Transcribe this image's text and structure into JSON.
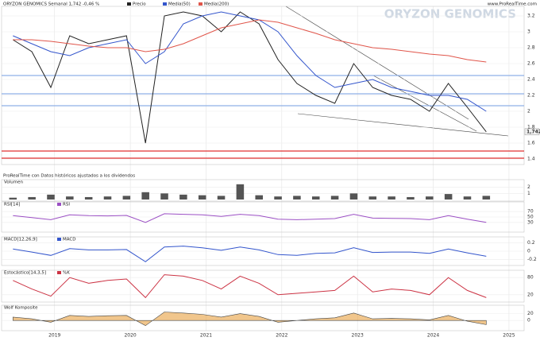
{
  "chart_data": [
    {
      "type": "line",
      "title": "ORYZON GENOMICS",
      "subtitle": "ORYZON GENOMICS Semanal 1,742 -0,46 %",
      "source": "www.ProRealTime.com",
      "note": "ProRealTime con Datos históricos ajustados a los dividendos",
      "x": [
        2018.45,
        2018.7,
        2018.95,
        2019.2,
        2019.45,
        2019.7,
        2019.95,
        2020.2,
        2020.45,
        2020.7,
        2020.95,
        2021.2,
        2021.45,
        2021.7,
        2021.95,
        2022.2,
        2022.45,
        2022.7,
        2022.95,
        2023.2,
        2023.45,
        2023.7,
        2023.95,
        2024.2,
        2024.45,
        2024.7
      ],
      "xlim": [
        2018.3,
        2025.2
      ],
      "xticks": [
        2019,
        2020,
        2021,
        2022,
        2023,
        2024,
        2025
      ],
      "ylim": [
        1.35,
        3.3
      ],
      "yticks": [
        1.4,
        1.6,
        1.8,
        2,
        2.2,
        2.4,
        2.6,
        2.8,
        3,
        3.2
      ],
      "series": [
        {
          "name": "Precio",
          "color": "#222222",
          "values": [
            2.9,
            2.75,
            2.3,
            2.95,
            2.85,
            2.9,
            2.95,
            1.6,
            3.2,
            3.25,
            3.2,
            3.0,
            3.25,
            3.1,
            2.65,
            2.35,
            2.2,
            2.1,
            2.6,
            2.3,
            2.2,
            2.15,
            2.0,
            2.35,
            2.05,
            1.742
          ]
        },
        {
          "name": "Media(50)",
          "color": "#3355cc",
          "values": [
            2.95,
            2.85,
            2.75,
            2.7,
            2.8,
            2.85,
            2.9,
            2.6,
            2.75,
            3.1,
            3.2,
            3.25,
            3.2,
            3.15,
            3.0,
            2.7,
            2.45,
            2.3,
            2.35,
            2.4,
            2.3,
            2.25,
            2.2,
            2.2,
            2.15,
            2.0
          ]
        },
        {
          "name": "Media(200)",
          "color": "#e0554a",
          "values": [
            2.9,
            2.9,
            2.88,
            2.85,
            2.82,
            2.8,
            2.8,
            2.75,
            2.78,
            2.85,
            2.95,
            3.05,
            3.1,
            3.15,
            3.12,
            3.05,
            2.98,
            2.9,
            2.85,
            2.8,
            2.78,
            2.75,
            2.72,
            2.7,
            2.65,
            2.62
          ]
        }
      ],
      "levels": [
        {
          "value": 2.45,
          "color": "#8fb0e6"
        },
        {
          "value": 2.22,
          "color": "#8fb0e6"
        },
        {
          "value": 2.07,
          "color": "#8fb0e6"
        },
        {
          "value": 1.5,
          "color": "#e03030"
        },
        {
          "value": 1.41,
          "color": "#e03030"
        }
      ],
      "last_price": {
        "value": 1.742,
        "label": "1,742"
      }
    },
    {
      "type": "bar",
      "title": "Volumen",
      "color": "#555555",
      "ylim": [
        0,
        3
      ],
      "yticks": [
        1,
        2
      ],
      "values": [
        0.3,
        0.4,
        0.8,
        0.5,
        0.4,
        0.5,
        0.6,
        1.2,
        1.0,
        0.8,
        0.7,
        0.6,
        2.5,
        0.7,
        0.5,
        0.6,
        0.5,
        0.6,
        1.0,
        0.5,
        0.5,
        0.4,
        0.5,
        0.9,
        0.5,
        0.6
      ]
    },
    {
      "type": "line",
      "title": "RSI[14]",
      "ylim": [
        0,
        100
      ],
      "yticks": [
        30,
        50,
        70
      ],
      "series": [
        {
          "name": "RSI",
          "color": "#9b4fc4",
          "values": [
            55,
            48,
            40,
            58,
            55,
            54,
            56,
            30,
            62,
            60,
            58,
            52,
            60,
            55,
            42,
            40,
            42,
            44,
            60,
            46,
            45,
            44,
            40,
            55,
            42,
            30
          ]
        }
      ]
    },
    {
      "type": "line",
      "title": "MACD[12,26,9]",
      "ylim": [
        -0.3,
        0.3
      ],
      "yticks": [
        -0.2,
        0,
        0.2
      ],
      "series": [
        {
          "name": "MACD",
          "color": "#3355cc",
          "values": [
            0.05,
            -0.02,
            -0.1,
            0.06,
            0.03,
            0.03,
            0.04,
            -0.25,
            0.1,
            0.12,
            0.08,
            0.02,
            0.1,
            0.03,
            -0.08,
            -0.1,
            -0.05,
            -0.04,
            0.08,
            -0.03,
            -0.02,
            -0.02,
            -0.05,
            0.05,
            -0.04,
            -0.12
          ]
        }
      ]
    },
    {
      "type": "line",
      "title": "Estocástico[14,3,5]",
      "ylim": [
        0,
        100
      ],
      "yticks": [
        20,
        80
      ],
      "series": [
        {
          "name": "%K",
          "color": "#cc3344",
          "values": [
            70,
            40,
            15,
            80,
            60,
            70,
            75,
            10,
            90,
            85,
            70,
            40,
            85,
            60,
            20,
            25,
            30,
            35,
            85,
            30,
            40,
            35,
            20,
            80,
            35,
            10
          ]
        }
      ]
    },
    {
      "type": "area",
      "title": "Wolf Komposite",
      "color": "#e8a040",
      "ylim": [
        -25,
        40
      ],
      "yticks": [
        0,
        20
      ],
      "values": [
        10,
        5,
        -5,
        15,
        12,
        14,
        15,
        -15,
        25,
        22,
        18,
        10,
        20,
        12,
        -5,
        0,
        5,
        8,
        22,
        5,
        6,
        5,
        2,
        15,
        -2,
        -12
      ]
    }
  ]
}
